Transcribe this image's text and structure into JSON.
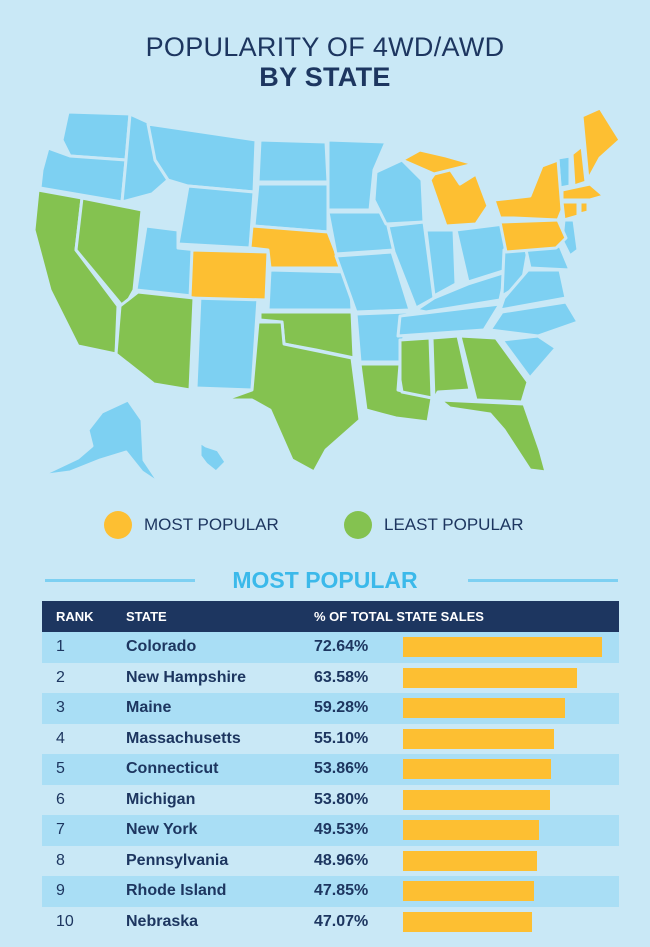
{
  "title": {
    "line1": "POPULARITY OF 4WD/AWD",
    "line2": "BY STATE"
  },
  "colors": {
    "most_popular": "#fdbf32",
    "least_popular": "#84c250",
    "neutral": "#7dd0f2",
    "background": "#c9e8f6",
    "navy": "#1d3660",
    "accent": "#3bb9ea"
  },
  "legend": [
    {
      "label": "MOST POPULAR",
      "color": "#fdbf32"
    },
    {
      "label": "LEAST POPULAR",
      "color": "#84c250"
    }
  ],
  "map": {
    "most_popular_states": [
      "Colorado",
      "Nebraska",
      "Michigan",
      "New York",
      "Pennsylvania",
      "Maine",
      "New Hampshire",
      "Massachusetts",
      "Connecticut",
      "Rhode Island"
    ],
    "least_popular_states": [
      "California",
      "Nevada",
      "Arizona",
      "Texas",
      "Oklahoma",
      "Louisiana",
      "Mississippi",
      "Alabama",
      "Georgia",
      "Florida"
    ]
  },
  "section_title": "MOST POPULAR",
  "table": {
    "headers": {
      "rank": "RANK",
      "state": "STATE",
      "pct": "% OF TOTAL STATE SALES"
    },
    "rows": [
      {
        "rank": "1",
        "state": "Colorado",
        "pct": "72.64%"
      },
      {
        "rank": "2",
        "state": "New Hampshire",
        "pct": "63.58%"
      },
      {
        "rank": "3",
        "state": "Maine",
        "pct": "59.28%"
      },
      {
        "rank": "4",
        "state": "Massachusetts",
        "pct": "55.10%"
      },
      {
        "rank": "5",
        "state": "Connecticut",
        "pct": "53.86%"
      },
      {
        "rank": "6",
        "state": "Michigan",
        "pct": "53.80%"
      },
      {
        "rank": "7",
        "state": "New York",
        "pct": "49.53%"
      },
      {
        "rank": "8",
        "state": "Pennsylvania",
        "pct": "48.96%"
      },
      {
        "rank": "9",
        "state": "Rhode Island",
        "pct": "47.85%"
      },
      {
        "rank": "10",
        "state": "Nebraska",
        "pct": "47.07%"
      }
    ]
  },
  "chart_data": [
    {
      "type": "bar",
      "title": "MOST POPULAR",
      "xlabel": "% OF TOTAL STATE SALES",
      "ylabel": "STATE",
      "orientation": "horizontal",
      "categories": [
        "Colorado",
        "New Hampshire",
        "Maine",
        "Massachusetts",
        "Connecticut",
        "Michigan",
        "New York",
        "Pennsylvania",
        "Rhode Island",
        "Nebraska"
      ],
      "values": [
        72.64,
        63.58,
        59.28,
        55.1,
        53.86,
        53.8,
        49.53,
        48.96,
        47.85,
        47.07
      ],
      "ranks": [
        1,
        2,
        3,
        4,
        5,
        6,
        7,
        8,
        9,
        10
      ],
      "bar_color": "#fdbf32",
      "grid": false
    },
    {
      "type": "heatmap",
      "title": "POPULARITY OF 4WD/AWD BY STATE",
      "legend": [
        "MOST POPULAR",
        "LEAST POPULAR"
      ],
      "most_popular": [
        "Colorado",
        "Nebraska",
        "Michigan",
        "New York",
        "Pennsylvania",
        "Maine",
        "New Hampshire",
        "Massachusetts",
        "Connecticut",
        "Rhode Island"
      ],
      "least_popular": [
        "California",
        "Nevada",
        "Arizona",
        "Texas",
        "Oklahoma",
        "Louisiana",
        "Mississippi",
        "Alabama",
        "Georgia",
        "Florida"
      ]
    }
  ]
}
